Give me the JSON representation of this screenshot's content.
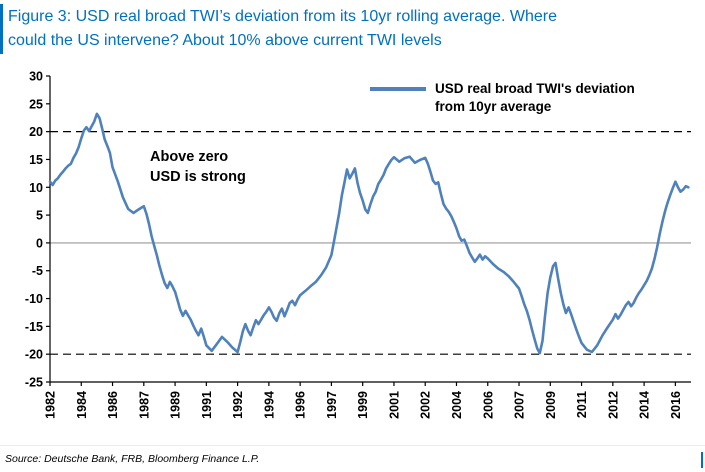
{
  "header": {
    "title_line1": "Figure 3:  USD real broad TWI’s deviation from its 10yr rolling average. Where",
    "title_line2": "could the US intervene? About 10% above current TWI levels"
  },
  "legend": {
    "label": "USD real broad TWI's deviation from 10yr average"
  },
  "annotation": {
    "line1": "Above zero",
    "line2": "USD is strong"
  },
  "source": {
    "text": "Source: Deutsche Bank, FRB, Bloomberg Finance L.P."
  },
  "colors": {
    "title_blue": "#0070C0",
    "series_blue": "#4F81BD",
    "zero_line": "#999999",
    "dashed_line": "#000000",
    "axis": "#000000"
  },
  "chart_data": {
    "type": "line",
    "title": "",
    "xlabel": "",
    "ylabel": "",
    "ylim": [
      -25,
      30
    ],
    "yticks": [
      30,
      25,
      20,
      15,
      10,
      5,
      0,
      -5,
      -10,
      -15,
      -20,
      -25
    ],
    "xticklabels": [
      "1982",
      "1984",
      "1986",
      "1987",
      "1989",
      "1991",
      "1992",
      "1994",
      "1996",
      "1997",
      "1999",
      "2001",
      "2002",
      "2004",
      "2006",
      "2007",
      "2009",
      "2011",
      "2012",
      "2014",
      "2016"
    ],
    "grid": false,
    "legend_position": "top-right-inside",
    "reference_lines": {
      "dashed": [
        20,
        -20
      ],
      "zero": 0
    },
    "series": [
      {
        "name": "USD real broad TWI's deviation from 10yr average",
        "points": [
          [
            1982.0,
            11.0
          ],
          [
            1982.17,
            10.4
          ],
          [
            1982.33,
            11.2
          ],
          [
            1982.5,
            11.6
          ],
          [
            1982.67,
            12.3
          ],
          [
            1982.83,
            12.8
          ],
          [
            1983.0,
            13.4
          ],
          [
            1983.17,
            13.9
          ],
          [
            1983.33,
            14.2
          ],
          [
            1983.5,
            15.3
          ],
          [
            1983.67,
            16.1
          ],
          [
            1983.83,
            17.2
          ],
          [
            1984.0,
            18.8
          ],
          [
            1984.17,
            20.2
          ],
          [
            1984.33,
            20.8
          ],
          [
            1984.5,
            20.1
          ],
          [
            1984.67,
            21.0
          ],
          [
            1984.83,
            21.8
          ],
          [
            1985.0,
            23.2
          ],
          [
            1985.17,
            22.4
          ],
          [
            1985.33,
            20.6
          ],
          [
            1985.5,
            18.6
          ],
          [
            1985.67,
            17.4
          ],
          [
            1985.83,
            16.2
          ],
          [
            1986.0,
            13.6
          ],
          [
            1986.17,
            11.0
          ],
          [
            1986.33,
            8.2
          ],
          [
            1986.5,
            6.1
          ],
          [
            1986.67,
            5.4
          ],
          [
            1986.83,
            6.0
          ],
          [
            1987.0,
            6.6
          ],
          [
            1987.17,
            5.2
          ],
          [
            1987.33,
            3.4
          ],
          [
            1987.5,
            1.2
          ],
          [
            1987.67,
            -0.6
          ],
          [
            1987.83,
            -2.2
          ],
          [
            1988.0,
            -4.1
          ],
          [
            1988.17,
            -5.8
          ],
          [
            1988.33,
            -7.2
          ],
          [
            1988.5,
            -8.1
          ],
          [
            1988.67,
            -7.0
          ],
          [
            1988.83,
            -7.8
          ],
          [
            1989.0,
            -8.8
          ],
          [
            1989.17,
            -10.4
          ],
          [
            1989.33,
            -12.0
          ],
          [
            1989.5,
            -13.1
          ],
          [
            1989.67,
            -12.2
          ],
          [
            1989.83,
            -13.0
          ],
          [
            1990.0,
            -13.8
          ],
          [
            1990.17,
            -14.9
          ],
          [
            1990.33,
            -15.8
          ],
          [
            1990.5,
            -16.6
          ],
          [
            1990.67,
            -15.4
          ],
          [
            1990.83,
            -16.8
          ],
          [
            1991.0,
            -18.4
          ],
          [
            1991.17,
            -19.4
          ],
          [
            1991.33,
            -18.2
          ],
          [
            1991.5,
            -16.9
          ],
          [
            1991.67,
            -17.8
          ],
          [
            1991.83,
            -18.8
          ],
          [
            1992.0,
            -19.6
          ],
          [
            1992.17,
            -17.8
          ],
          [
            1992.33,
            -15.9
          ],
          [
            1992.5,
            -14.6
          ],
          [
            1992.67,
            -15.8
          ],
          [
            1992.83,
            -16.6
          ],
          [
            1993.0,
            -15.2
          ],
          [
            1993.17,
            -13.9
          ],
          [
            1993.33,
            -14.6
          ],
          [
            1993.5,
            -13.8
          ],
          [
            1993.67,
            -13.0
          ],
          [
            1993.83,
            -12.4
          ],
          [
            1994.0,
            -11.6
          ],
          [
            1994.17,
            -12.4
          ],
          [
            1994.33,
            -13.4
          ],
          [
            1994.5,
            -14.0
          ],
          [
            1994.67,
            -12.6
          ],
          [
            1994.83,
            -11.8
          ],
          [
            1995.0,
            -13.2
          ],
          [
            1995.17,
            -12.0
          ],
          [
            1995.33,
            -10.8
          ],
          [
            1995.5,
            -10.4
          ],
          [
            1995.67,
            -11.2
          ],
          [
            1995.83,
            -10.2
          ],
          [
            1996.0,
            -9.4
          ],
          [
            1996.17,
            -8.6
          ],
          [
            1996.33,
            -7.8
          ],
          [
            1996.5,
            -7.0
          ],
          [
            1996.67,
            -5.8
          ],
          [
            1996.83,
            -4.4
          ],
          [
            1997.0,
            -2.2
          ],
          [
            1997.17,
            0.4
          ],
          [
            1997.33,
            2.8
          ],
          [
            1997.5,
            5.4
          ],
          [
            1997.67,
            8.6
          ],
          [
            1997.83,
            10.8
          ],
          [
            1998.0,
            13.2
          ],
          [
            1998.17,
            11.6
          ],
          [
            1998.33,
            12.4
          ],
          [
            1998.5,
            13.4
          ],
          [
            1998.67,
            10.8
          ],
          [
            1998.83,
            9.0
          ],
          [
            1999.0,
            7.6
          ],
          [
            1999.17,
            6.0
          ],
          [
            1999.33,
            5.4
          ],
          [
            1999.5,
            7.0
          ],
          [
            1999.67,
            8.4
          ],
          [
            1999.83,
            9.2
          ],
          [
            2000.0,
            10.6
          ],
          [
            2000.17,
            11.4
          ],
          [
            2000.33,
            12.2
          ],
          [
            2000.5,
            13.4
          ],
          [
            2000.67,
            14.2
          ],
          [
            2000.83,
            14.9
          ],
          [
            2001.0,
            15.4
          ],
          [
            2001.17,
            14.6
          ],
          [
            2001.33,
            15.2
          ],
          [
            2001.5,
            15.5
          ],
          [
            2001.67,
            14.4
          ],
          [
            2001.83,
            14.9
          ],
          [
            2002.0,
            15.3
          ],
          [
            2002.17,
            14.2
          ],
          [
            2002.33,
            12.8
          ],
          [
            2002.5,
            11.2
          ],
          [
            2002.67,
            10.6
          ],
          [
            2002.83,
            10.9
          ],
          [
            2003.0,
            8.8
          ],
          [
            2003.17,
            7.0
          ],
          [
            2003.33,
            6.2
          ],
          [
            2003.5,
            5.6
          ],
          [
            2003.67,
            4.8
          ],
          [
            2003.83,
            3.8
          ],
          [
            2004.0,
            2.6
          ],
          [
            2004.17,
            1.2
          ],
          [
            2004.33,
            0.4
          ],
          [
            2004.5,
            0.6
          ],
          [
            2004.67,
            -0.6
          ],
          [
            2004.83,
            -1.8
          ],
          [
            2005.0,
            -2.6
          ],
          [
            2005.17,
            -3.4
          ],
          [
            2005.33,
            -2.8
          ],
          [
            2005.5,
            -2.1
          ],
          [
            2005.67,
            -3.0
          ],
          [
            2005.83,
            -2.4
          ],
          [
            2006.0,
            -2.8
          ],
          [
            2006.17,
            -3.8
          ],
          [
            2006.33,
            -4.6
          ],
          [
            2006.5,
            -5.2
          ],
          [
            2006.67,
            -6.0
          ],
          [
            2006.83,
            -7.0
          ],
          [
            2007.0,
            -8.2
          ],
          [
            2007.17,
            -9.6
          ],
          [
            2007.33,
            -11.0
          ],
          [
            2007.5,
            -12.2
          ],
          [
            2007.67,
            -13.8
          ],
          [
            2007.83,
            -15.6
          ],
          [
            2008.0,
            -17.4
          ],
          [
            2008.17,
            -19.0
          ],
          [
            2008.33,
            -19.8
          ],
          [
            2008.5,
            -17.6
          ],
          [
            2008.67,
            -13.0
          ],
          [
            2008.83,
            -9.0
          ],
          [
            2009.0,
            -6.2
          ],
          [
            2009.17,
            -4.2
          ],
          [
            2009.33,
            -3.6
          ],
          [
            2009.5,
            -6.4
          ],
          [
            2009.67,
            -9.0
          ],
          [
            2009.83,
            -11.0
          ],
          [
            2010.0,
            -12.6
          ],
          [
            2010.17,
            -11.6
          ],
          [
            2010.33,
            -12.8
          ],
          [
            2010.5,
            -14.2
          ],
          [
            2010.67,
            -15.6
          ],
          [
            2010.83,
            -16.8
          ],
          [
            2011.0,
            -18.0
          ],
          [
            2011.17,
            -19.2
          ],
          [
            2011.33,
            -19.6
          ],
          [
            2011.5,
            -18.4
          ],
          [
            2011.67,
            -16.6
          ],
          [
            2011.83,
            -15.2
          ],
          [
            2012.0,
            -13.8
          ],
          [
            2012.17,
            -12.8
          ],
          [
            2012.33,
            -13.6
          ],
          [
            2012.5,
            -12.9
          ],
          [
            2012.67,
            -12.0
          ],
          [
            2012.83,
            -11.2
          ],
          [
            2013.0,
            -10.6
          ],
          [
            2013.17,
            -11.4
          ],
          [
            2013.33,
            -10.8
          ],
          [
            2013.5,
            -9.8
          ],
          [
            2013.67,
            -9.0
          ],
          [
            2013.83,
            -8.4
          ],
          [
            2014.0,
            -7.6
          ],
          [
            2014.17,
            -6.8
          ],
          [
            2014.33,
            -5.8
          ],
          [
            2014.5,
            -4.6
          ],
          [
            2014.67,
            -2.8
          ],
          [
            2014.83,
            -0.8
          ],
          [
            2015.0,
            1.6
          ],
          [
            2015.17,
            3.8
          ],
          [
            2015.33,
            5.6
          ],
          [
            2015.5,
            7.2
          ],
          [
            2015.67,
            8.6
          ],
          [
            2015.83,
            9.8
          ],
          [
            2016.0,
            11.0
          ],
          [
            2016.17,
            10.0
          ],
          [
            2016.33,
            9.2
          ],
          [
            2016.5,
            9.6
          ],
          [
            2016.67,
            10.2
          ],
          [
            2016.83,
            10.0
          ]
        ]
      }
    ]
  }
}
